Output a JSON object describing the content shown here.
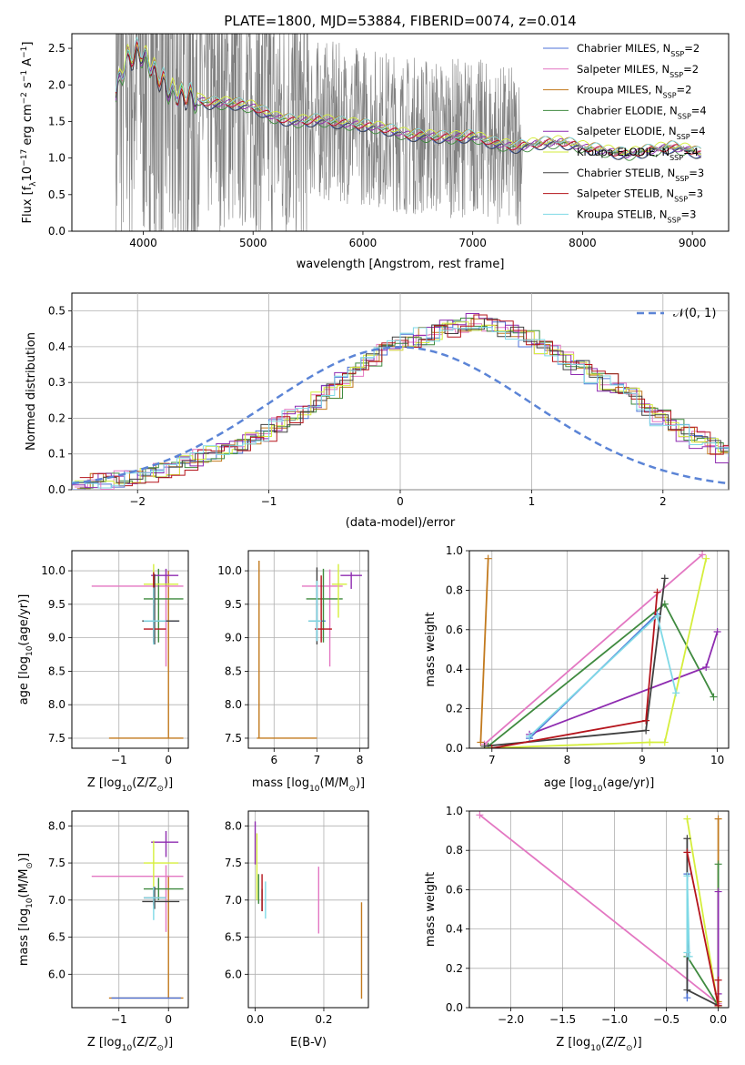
{
  "page_title": "PLATE=1800, MJD=53884, FIBERID=0074, z=0.014",
  "model_colors": {
    "Chabrier MILES": "#4c72d8",
    "Salpeter MILES": "#e377c2",
    "Kroupa MILES": "#c27a1e",
    "Chabrier ELODIE": "#3f8a3f",
    "Salpeter ELODIE": "#8e2bb0",
    "Kroupa ELODIE": "#d5ee3c",
    "Chabrier STELIB": "#404040",
    "Salpeter STELIB": "#b5141c",
    "Kroupa STELIB": "#7fd9e6"
  },
  "chart_data": [
    {
      "id": "spectrum",
      "type": "line",
      "title": "PLATE=1800, MJD=53884, FIBERID=0074, z=0.014",
      "xlabel": "wavelength [Angstrom, rest frame]",
      "ylabel_main": "Flux [f",
      "ylabel_sub": "λ",
      "ylabel_mid": "10",
      "ylabel_sup1": "−17",
      "ylabel_mid2": " erg cm",
      "ylabel_sup2": "−2",
      "ylabel_mid3": " s",
      "ylabel_sup3": "−1",
      "ylabel_mid4": " A",
      "ylabel_sup4": "−1",
      "ylabel_end": "]",
      "xlim": [
        3350,
        9330
      ],
      "ylim": [
        0,
        2.7
      ],
      "xticks": [
        4000,
        5000,
        6000,
        7000,
        8000,
        9000
      ],
      "yticks": [
        0.0,
        0.5,
        1.0,
        1.5,
        2.0,
        2.5
      ],
      "data_color": "#808080",
      "data_range": [
        3750,
        9080
      ],
      "continuum": {
        "x": [
          3750,
          3850,
          3950,
          4000,
          4100,
          4250,
          4400,
          4600,
          4800,
          5000,
          5200,
          5400,
          5600,
          5800,
          6000,
          6200,
          6400,
          6600,
          6800,
          7000,
          7200,
          7400,
          7600,
          7800,
          8000,
          8200,
          8400,
          8600,
          8800,
          9000,
          9080
        ],
        "y": [
          1.9,
          2.35,
          2.45,
          2.4,
          2.2,
          1.9,
          1.85,
          1.75,
          1.75,
          1.7,
          1.55,
          1.5,
          1.52,
          1.48,
          1.45,
          1.4,
          1.32,
          1.3,
          1.28,
          1.3,
          1.2,
          1.15,
          1.2,
          1.22,
          1.15,
          1.1,
          1.05,
          1.1,
          1.15,
          1.1,
          1.05
        ]
      },
      "series": [
        {
          "name": "Chabrier MILES, N",
          "sub": "SSP",
          "tail": "=2"
        },
        {
          "name": "Salpeter MILES, N",
          "sub": "SSP",
          "tail": "=2"
        },
        {
          "name": "Kroupa MILES, N",
          "sub": "SSP",
          "tail": "=2"
        },
        {
          "name": "Chabrier ELODIE, N",
          "sub": "SSP",
          "tail": "=4"
        },
        {
          "name": "Salpeter ELODIE, N",
          "sub": "SSP",
          "tail": "=4"
        },
        {
          "name": "Kroupa ELODIE, N",
          "sub": "SSP",
          "tail": "=4"
        },
        {
          "name": "Chabrier STELIB, N",
          "sub": "SSP",
          "tail": "=3"
        },
        {
          "name": "Salpeter STELIB, N",
          "sub": "SSP",
          "tail": "=3"
        },
        {
          "name": "Kroupa STELIB, N",
          "sub": "SSP",
          "tail": "=3"
        }
      ],
      "legend": "top-right",
      "grid": false
    },
    {
      "id": "residuals",
      "type": "histogram",
      "xlabel": "(data-model)/error",
      "ylabel": "Normed distribution",
      "xlim": [
        -2.5,
        2.5
      ],
      "ylim": [
        0,
        0.55
      ],
      "xticks": [
        -2,
        -1,
        0,
        1,
        2
      ],
      "yticks": [
        0.0,
        0.1,
        0.2,
        0.3,
        0.4,
        0.5
      ],
      "grid": true,
      "legend": "top-right",
      "gaussian_label": "𝒩(0, 1)",
      "bin_width": 0.1,
      "base_profile": [
        0.02,
        0.022,
        0.025,
        0.03,
        0.035,
        0.045,
        0.055,
        0.065,
        0.075,
        0.09,
        0.1,
        0.11,
        0.12,
        0.14,
        0.16,
        0.18,
        0.2,
        0.22,
        0.25,
        0.28,
        0.31,
        0.34,
        0.37,
        0.39,
        0.41,
        0.42,
        0.43,
        0.44,
        0.45,
        0.46,
        0.47,
        0.46,
        0.45,
        0.44,
        0.42,
        0.4,
        0.38,
        0.36,
        0.34,
        0.32,
        0.3,
        0.28,
        0.26,
        0.23,
        0.2,
        0.18,
        0.16,
        0.14,
        0.12,
        0.1,
        0.09
      ]
    },
    {
      "id": "age_vs_Z",
      "type": "errorbar",
      "xlabel": "Z [log10(Z/Z⊙)]",
      "ylabel": "age [log10(age/yr)]",
      "xlim": [
        -1.95,
        0.4
      ],
      "ylim": [
        7.35,
        10.3
      ],
      "xticks": [
        -1,
        0
      ],
      "yticks": [
        7.5,
        8.0,
        8.5,
        9.0,
        9.5,
        10.0
      ],
      "grid": true,
      "points": [
        {
          "model": "Kroupa MILES",
          "x": 0.0,
          "y": 7.5,
          "xerr": [
            1.2,
            0.3
          ],
          "yerr": [
            0.0,
            2.5
          ]
        },
        {
          "model": "Salpeter MILES",
          "x": -0.05,
          "y": 9.77,
          "xerr": [
            1.5,
            0.35
          ],
          "yerr": [
            1.2,
            0.25
          ]
        },
        {
          "model": "Chabrier MILES",
          "x": -0.3,
          "y": 9.25,
          "xerr": [
            0.2,
            0.5
          ],
          "yerr": [
            0.3,
            0.5
          ]
        },
        {
          "model": "Chabrier ELODIE",
          "x": -0.2,
          "y": 9.58,
          "xerr": [
            0.3,
            0.5
          ],
          "yerr": [
            0.65,
            0.45
          ]
        },
        {
          "model": "Salpeter ELODIE",
          "x": -0.05,
          "y": 9.93,
          "xerr": [
            0.3,
            0.25
          ],
          "yerr": [
            0.15,
            0.1
          ]
        },
        {
          "model": "Kroupa ELODIE",
          "x": -0.3,
          "y": 9.8,
          "xerr": [
            0.2,
            0.5
          ],
          "yerr": [
            0.5,
            0.3
          ]
        },
        {
          "model": "Chabrier STELIB",
          "x": -0.28,
          "y": 9.25,
          "xerr": [
            0.25,
            0.5
          ],
          "yerr": [
            0.35,
            0.7
          ]
        },
        {
          "model": "Salpeter STELIB",
          "x": -0.3,
          "y": 9.13,
          "xerr": [
            0.2,
            0.25
          ],
          "yerr": [
            0.2,
            0.85
          ]
        },
        {
          "model": "Kroupa STELIB",
          "x": -0.3,
          "y": 9.25,
          "xerr": [
            0.2,
            0.25
          ],
          "yerr": [
            0.35,
            0.5
          ]
        }
      ]
    },
    {
      "id": "age_vs_mass",
      "type": "errorbar",
      "xlabel": "mass [log10(M/M⊙)]",
      "xlim": [
        5.4,
        8.2
      ],
      "ylim": [
        7.35,
        10.3
      ],
      "xticks": [
        6,
        7,
        8
      ],
      "yticks": [
        7.5,
        8.0,
        8.5,
        9.0,
        9.5,
        10.0
      ],
      "grid": true,
      "points": [
        {
          "model": "Kroupa MILES",
          "x": 5.65,
          "y": 7.5,
          "xerr": [
            0.05,
            1.35
          ],
          "yerr": [
            0.0,
            2.65
          ]
        },
        {
          "model": "Salpeter MILES",
          "x": 7.3,
          "y": 9.77,
          "xerr": [
            0.65,
            0.3
          ],
          "yerr": [
            1.2,
            0.25
          ]
        },
        {
          "model": "Chabrier MILES",
          "x": 7.0,
          "y": 9.25,
          "xerr": [
            0.1,
            0.2
          ],
          "yerr": [
            0.3,
            0.5
          ]
        },
        {
          "model": "Chabrier ELODIE",
          "x": 7.15,
          "y": 9.58,
          "xerr": [
            0.4,
            0.45
          ],
          "yerr": [
            0.65,
            0.45
          ]
        },
        {
          "model": "Salpeter ELODIE",
          "x": 7.8,
          "y": 9.93,
          "xerr": [
            0.25,
            0.25
          ],
          "yerr": [
            0.2,
            0.05
          ]
        },
        {
          "model": "Kroupa ELODIE",
          "x": 7.5,
          "y": 9.8,
          "xerr": [
            0.15,
            0.2
          ],
          "yerr": [
            0.5,
            0.3
          ]
        },
        {
          "model": "Chabrier STELIB",
          "x": 7.0,
          "y": 9.25,
          "xerr": [
            0.2,
            0.1
          ],
          "yerr": [
            0.35,
            0.8
          ]
        },
        {
          "model": "Salpeter STELIB",
          "x": 7.1,
          "y": 9.13,
          "xerr": [
            0.15,
            0.25
          ],
          "yerr": [
            0.2,
            0.8
          ]
        },
        {
          "model": "Kroupa STELIB",
          "x": 7.0,
          "y": 9.25,
          "xerr": [
            0.2,
            0.1
          ],
          "yerr": [
            0.3,
            0.6
          ]
        }
      ]
    },
    {
      "id": "weight_vs_age",
      "type": "line",
      "xlabel": "age [log10(age/yr)]",
      "ylabel": "mass weight",
      "xlim": [
        6.7,
        10.15
      ],
      "ylim": [
        0,
        1
      ],
      "xticks": [
        7,
        8,
        9,
        10
      ],
      "yticks": [
        0.0,
        0.2,
        0.4,
        0.6,
        0.8,
        1.0
      ],
      "grid": true,
      "series": [
        {
          "model": "Kroupa MILES",
          "x": [
            6.85,
            6.95
          ],
          "y": [
            0.03,
            0.96
          ]
        },
        {
          "model": "Salpeter MILES",
          "x": [
            6.9,
            9.8
          ],
          "y": [
            0.02,
            0.98
          ]
        },
        {
          "model": "Chabrier MILES",
          "x": [
            7.5,
            9.2
          ],
          "y": [
            0.05,
            0.68
          ]
        },
        {
          "model": "Chabrier ELODIE",
          "x": [
            6.95,
            9.3,
            9.95
          ],
          "y": [
            0.01,
            0.73,
            0.26
          ]
        },
        {
          "model": "Salpeter ELODIE",
          "x": [
            7.5,
            9.85,
            10.0
          ],
          "y": [
            0.07,
            0.41,
            0.59
          ]
        },
        {
          "model": "Kroupa ELODIE",
          "x": [
            6.9,
            9.1,
            9.3,
            9.85
          ],
          "y": [
            0.0,
            0.03,
            0.03,
            0.96
          ]
        },
        {
          "model": "Chabrier STELIB",
          "x": [
            6.9,
            9.05,
            9.3
          ],
          "y": [
            0.01,
            0.09,
            0.86
          ]
        },
        {
          "model": "Salpeter STELIB",
          "x": [
            7.0,
            9.05,
            9.2
          ],
          "y": [
            0.0,
            0.14,
            0.79
          ]
        },
        {
          "model": "Kroupa STELIB",
          "x": [
            7.5,
            9.2,
            9.45
          ],
          "y": [
            0.06,
            0.67,
            0.28
          ]
        }
      ]
    },
    {
      "id": "mass_vs_Z",
      "type": "errorbar",
      "xlabel": "Z [log10(Z/Z⊙)]",
      "ylabel": "mass [log10(M/M⊙)]",
      "xlim": [
        -1.95,
        0.4
      ],
      "ylim": [
        5.55,
        8.2
      ],
      "xticks": [
        -1,
        0
      ],
      "yticks": [
        6.0,
        6.5,
        7.0,
        7.5,
        8.0
      ],
      "grid": true,
      "points": [
        {
          "model": "Kroupa MILES",
          "x": 0.0,
          "y": 5.68,
          "xerr": [
            1.2,
            0.3
          ],
          "yerr": [
            0.0,
            1.65
          ]
        },
        {
          "model": "Chabrier MILES",
          "x": -0.05,
          "y": 5.68,
          "xerr": [
            1.1,
            0.3
          ],
          "yerr": [
            0.0,
            0.0
          ]
        },
        {
          "model": "Salpeter MILES",
          "x": -0.05,
          "y": 7.32,
          "xerr": [
            1.5,
            0.35
          ],
          "yerr": [
            0.75,
            0.15
          ]
        },
        {
          "model": "Chabrier ELODIE",
          "x": -0.2,
          "y": 7.15,
          "xerr": [
            0.3,
            0.5
          ],
          "yerr": [
            0.15,
            0.15
          ]
        },
        {
          "model": "Salpeter ELODIE",
          "x": -0.05,
          "y": 7.78,
          "xerr": [
            0.3,
            0.25
          ],
          "yerr": [
            0.2,
            0.15
          ]
        },
        {
          "model": "Kroupa ELODIE",
          "x": -0.3,
          "y": 7.5,
          "xerr": [
            0.2,
            0.5
          ],
          "yerr": [
            0.35,
            0.3
          ]
        },
        {
          "model": "Chabrier STELIB",
          "x": -0.28,
          "y": 6.98,
          "xerr": [
            0.25,
            0.5
          ],
          "yerr": [
            0.1,
            0.2
          ]
        },
        {
          "model": "Salpeter STELIB",
          "x": -0.3,
          "y": 7.03,
          "xerr": [
            0.2,
            0.25
          ],
          "yerr": [
            0.1,
            0.1
          ]
        },
        {
          "model": "Kroupa STELIB",
          "x": -0.3,
          "y": 7.03,
          "xerr": [
            0.2,
            0.25
          ],
          "yerr": [
            0.3,
            0.15
          ]
        }
      ]
    },
    {
      "id": "mass_vs_ebv",
      "type": "errorbar",
      "xlabel": "E(B-V)",
      "xlim": [
        -0.02,
        0.33
      ],
      "ylim": [
        5.55,
        8.2
      ],
      "xticks": [
        0.0,
        0.2
      ],
      "xtick_labels": [
        "0.0",
        "0.2"
      ],
      "yticks": [
        6.0,
        6.5,
        7.0,
        7.5,
        8.0
      ],
      "grid": true,
      "points": [
        {
          "model": "Kroupa MILES",
          "x": 0.31,
          "y": 6.32,
          "yerr": [
            0.65,
            0.65
          ]
        },
        {
          "model": "Salpeter MILES",
          "x": 0.185,
          "y": 7.0,
          "yerr": [
            0.45,
            0.45
          ]
        },
        {
          "model": "Chabrier ELODIE",
          "x": 0.01,
          "y": 7.15,
          "yerr": [
            0.2,
            0.2
          ]
        },
        {
          "model": "Salpeter ELODIE",
          "x": 0.0,
          "y": 7.78,
          "yerr": [
            0.3,
            0.28
          ]
        },
        {
          "model": "Kroupa ELODIE",
          "x": 0.005,
          "y": 7.5,
          "yerr": [
            0.5,
            0.4
          ]
        },
        {
          "model": "Chabrier STELIB",
          "x": 0.02,
          "y": 7.0,
          "yerr": [
            0.15,
            0.15
          ]
        },
        {
          "model": "Salpeter STELIB",
          "x": 0.02,
          "y": 7.1,
          "yerr": [
            0.25,
            0.25
          ]
        },
        {
          "model": "Kroupa STELIB",
          "x": 0.03,
          "y": 7.0,
          "yerr": [
            0.25,
            0.25
          ]
        }
      ]
    },
    {
      "id": "weight_vs_Z",
      "type": "line",
      "xlabel": "Z [log10(Z/Z⊙)]",
      "ylabel": "mass weight",
      "xlim": [
        -2.4,
        0.1
      ],
      "ylim": [
        0,
        1
      ],
      "xticks": [
        -2.0,
        -1.5,
        -1.0,
        -0.5,
        0.0
      ],
      "yticks": [
        0.0,
        0.2,
        0.4,
        0.6,
        0.8,
        1.0
      ],
      "grid": true,
      "series": [
        {
          "model": "Salpeter MILES",
          "x": [
            -2.3,
            0.0
          ],
          "y": [
            0.98,
            0.02
          ]
        },
        {
          "model": "Kroupa MILES",
          "x": [
            0.0,
            0.0
          ],
          "y": [
            0.03,
            0.96
          ]
        },
        {
          "model": "Chabrier MILES",
          "x": [
            -0.3,
            -0.3
          ],
          "y": [
            0.05,
            0.68
          ]
        },
        {
          "model": "Chabrier ELODIE",
          "x": [
            -0.3,
            0.0,
            0.0
          ],
          "y": [
            0.26,
            0.01,
            0.73
          ]
        },
        {
          "model": "Salpeter ELODIE",
          "x": [
            0.0,
            0.0
          ],
          "y": [
            0.07,
            0.59
          ]
        },
        {
          "model": "Kroupa ELODIE",
          "x": [
            -0.3,
            0.0
          ],
          "y": [
            0.96,
            0.0
          ]
        },
        {
          "model": "Chabrier STELIB",
          "x": [
            -0.3,
            -0.3,
            0.0
          ],
          "y": [
            0.86,
            0.09,
            0.01
          ]
        },
        {
          "model": "Salpeter STELIB",
          "x": [
            -0.3,
            0.0,
            0.0
          ],
          "y": [
            0.79,
            0.01,
            0.14
          ]
        },
        {
          "model": "Kroupa STELIB",
          "x": [
            -0.3,
            -0.3,
            -0.28
          ],
          "y": [
            0.28,
            0.67,
            0.26
          ]
        }
      ]
    }
  ],
  "axis_text": {
    "z_label_prefix": "Z [log",
    "z_label_sub": "10",
    "z_label_suffix": "(Z/Z",
    "z_label_sun": "⊙",
    "z_label_end": ")]",
    "age_label_prefix": "age  [log",
    "age_label_sub": "10",
    "age_label_suffix": "(age/yr)]",
    "mass_label_prefix": "mass [log",
    "mass_label_sub": "10",
    "mass_label_suffix": "(M/M",
    "mass_label_sun": "⊙",
    "mass_label_end": ")]"
  }
}
